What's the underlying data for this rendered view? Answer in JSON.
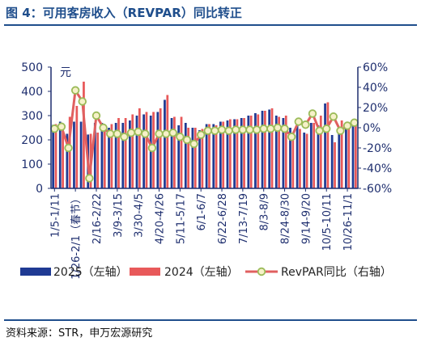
{
  "title": "图 4：可用客房收入（REVPAR）同比转正",
  "source": "资料来源：STR，申万宏源研究",
  "chart_data": {
    "type": "bar",
    "unit_label": "元",
    "y_left": {
      "min": 0,
      "max": 500,
      "ticks": [
        "0",
        "100",
        "200",
        "300",
        "400",
        "500"
      ]
    },
    "y_right": {
      "min": -60,
      "max": 60,
      "ticks": [
        "-60%",
        "-40%",
        "-20%",
        "0%",
        "20%",
        "40%",
        "60%"
      ]
    },
    "x_tick_labels": [
      {
        "index": 0,
        "text": "1/5-1/11"
      },
      {
        "index": 3,
        "text": "1/26-2/1（春节）"
      },
      {
        "index": 6,
        "text": "2/16-2/22"
      },
      {
        "index": 9,
        "text": "3/9-3/15"
      },
      {
        "index": 12,
        "text": "3/30-4/5"
      },
      {
        "index": 15,
        "text": "4/20-4/26"
      },
      {
        "index": 18,
        "text": "5/11-5/17"
      },
      {
        "index": 21,
        "text": "6/1-6/7"
      },
      {
        "index": 24,
        "text": "6/22-6/28"
      },
      {
        "index": 27,
        "text": "7/13-7/19"
      },
      {
        "index": 30,
        "text": "8/3-8/9"
      },
      {
        "index": 33,
        "text": "8/24-8/30"
      },
      {
        "index": 36,
        "text": "9/14-9/20"
      },
      {
        "index": 39,
        "text": "10/5-10/11"
      },
      {
        "index": 42,
        "text": "10/26-11/1"
      }
    ],
    "colors": {
      "s2025": "#1f3a93",
      "s2024": "#e8595a",
      "yoy_line": "#e06060",
      "yoy_marker": "#9bbb59"
    },
    "series": [
      {
        "name": "2025（左轴）",
        "axis": "left",
        "kind": "bar",
        "values": [
          262,
          275,
          225,
          275,
          275,
          222,
          270,
          270,
          250,
          270,
          270,
          280,
          300,
          305,
          300,
          315,
          365,
          290,
          260,
          270,
          250,
          240,
          265,
          265,
          275,
          280,
          285,
          290,
          300,
          310,
          320,
          325,
          300,
          290,
          250,
          260,
          230,
          270,
          260,
          350,
          220,
          250,
          270,
          280
        ]
      },
      {
        "name": "2024（左轴）",
        "axis": "left",
        "kind": "bar",
        "values": [
          265,
          265,
          295,
          340,
          440,
          225,
          230,
          245,
          265,
          290,
          290,
          305,
          330,
          315,
          315,
          330,
          385,
          295,
          295,
          250,
          250,
          245,
          265,
          260,
          275,
          285,
          285,
          290,
          300,
          305,
          320,
          330,
          295,
          300,
          230,
          245,
          225,
          270,
          300,
          355,
          190,
          280,
          265,
          270
        ]
      },
      {
        "name": "RevPAR同比（右轴）",
        "axis": "right",
        "kind": "line",
        "values": [
          -1,
          1,
          -20,
          37,
          26,
          -50,
          12,
          0,
          -6,
          -6,
          -9,
          -5,
          -4,
          -6,
          -20,
          -6,
          -6,
          -5,
          -9,
          -12,
          -16,
          -7,
          -3,
          -3,
          -2,
          -3,
          -2,
          -2,
          -2,
          -2,
          -1,
          -1,
          0,
          -1,
          -9,
          6,
          3,
          14,
          -3,
          -1,
          11,
          -3,
          2,
          5
        ]
      }
    ],
    "legend": [
      "2025（左轴）",
      "2024（左轴）",
      "RevPAR同比（右轴）"
    ],
    "legend_position": "bottom"
  }
}
